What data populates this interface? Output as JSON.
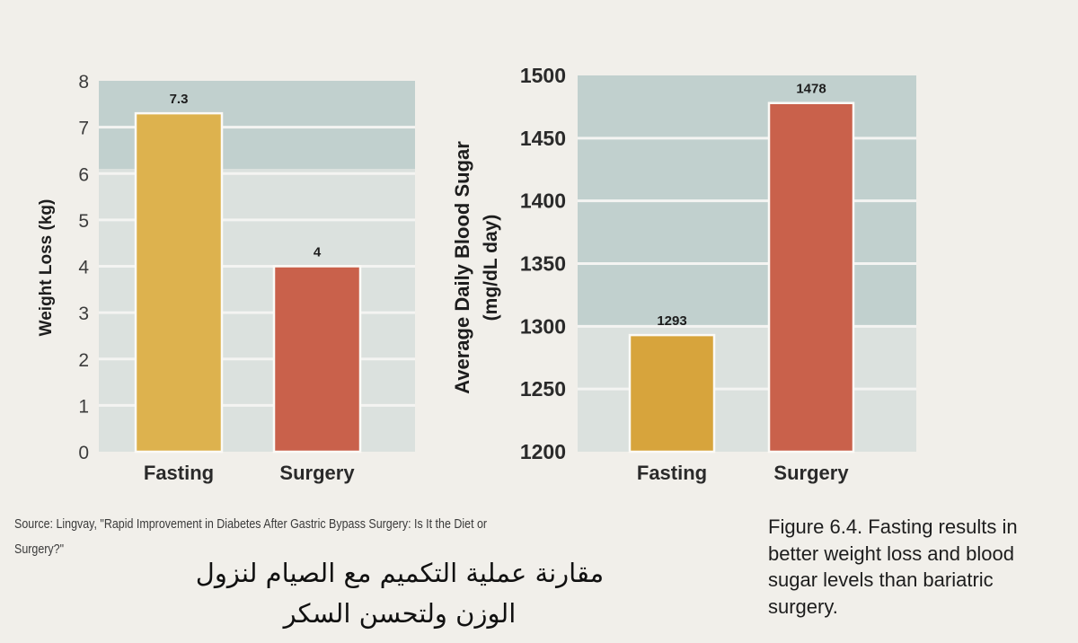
{
  "chart_data": [
    {
      "type": "bar",
      "categories": [
        "Fasting",
        "Surgery"
      ],
      "values": [
        7.3,
        4
      ],
      "value_labels": [
        "7.3",
        "4"
      ],
      "bar_colors": [
        "#ddb24e",
        "#c9614b"
      ],
      "ylabel": "Weight Loss (kg)",
      "ylim": [
        0,
        8
      ],
      "yticks": [
        "0",
        "1",
        "2",
        "3",
        "4",
        "5",
        "6",
        "7",
        "8"
      ]
    },
    {
      "type": "bar",
      "categories": [
        "Fasting",
        "Surgery"
      ],
      "values": [
        1293,
        1478
      ],
      "value_labels": [
        "1293",
        "1478"
      ],
      "bar_colors": [
        "#d7a43c",
        "#c9614b"
      ],
      "ylabel": [
        "Average Daily Blood Sugar",
        "(mg/dL day)"
      ],
      "ylim": [
        1200,
        1500
      ],
      "yticks": [
        "1200",
        "1250",
        "1300",
        "1350",
        "1400",
        "1450",
        "1500"
      ]
    }
  ],
  "source": {
    "line1": "Source: Lingvay, \"Rapid Improvement in Diabetes After Gastric Bypass Surgery: Is It the Diet or",
    "line2": "Surgery?\""
  },
  "arabic_note": {
    "line1": "مقارنة عملية التكميم مع الصيام لنزول",
    "line2": "الوزن ولتحسن السكر"
  },
  "caption": {
    "line1": "Figure 6.4. Fasting results in",
    "line2": "better weight loss and blood",
    "line3": "sugar levels than bariatric",
    "line4": "surgery."
  },
  "colors": {
    "panel_light": "#dbe1de",
    "panel_dark": "#c1d0ce",
    "gridline": "#f4f4f2"
  }
}
